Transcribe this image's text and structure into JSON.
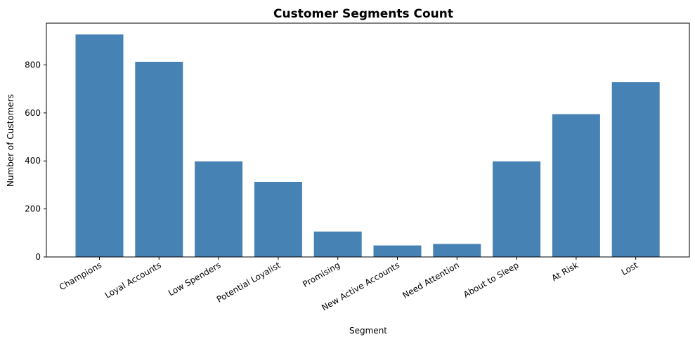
{
  "chart_data": {
    "type": "bar",
    "title": "Customer Segments Count",
    "xlabel": "Segment",
    "ylabel": "Number of Customers",
    "categories": [
      "Champions",
      "Loyal Accounts",
      "Low Spenders",
      "Potential Loyalist",
      "Promising",
      "New Active Accounts",
      "Need Attention",
      "About to Sleep",
      "At Risk",
      "Lost"
    ],
    "values": [
      927,
      813,
      398,
      313,
      106,
      48,
      54,
      398,
      595,
      728
    ],
    "ylim": [
      0,
      974
    ],
    "yticks": [
      0,
      200,
      400,
      600,
      800
    ],
    "bar_color": "#4682b4",
    "grid": false,
    "legend": "none"
  }
}
